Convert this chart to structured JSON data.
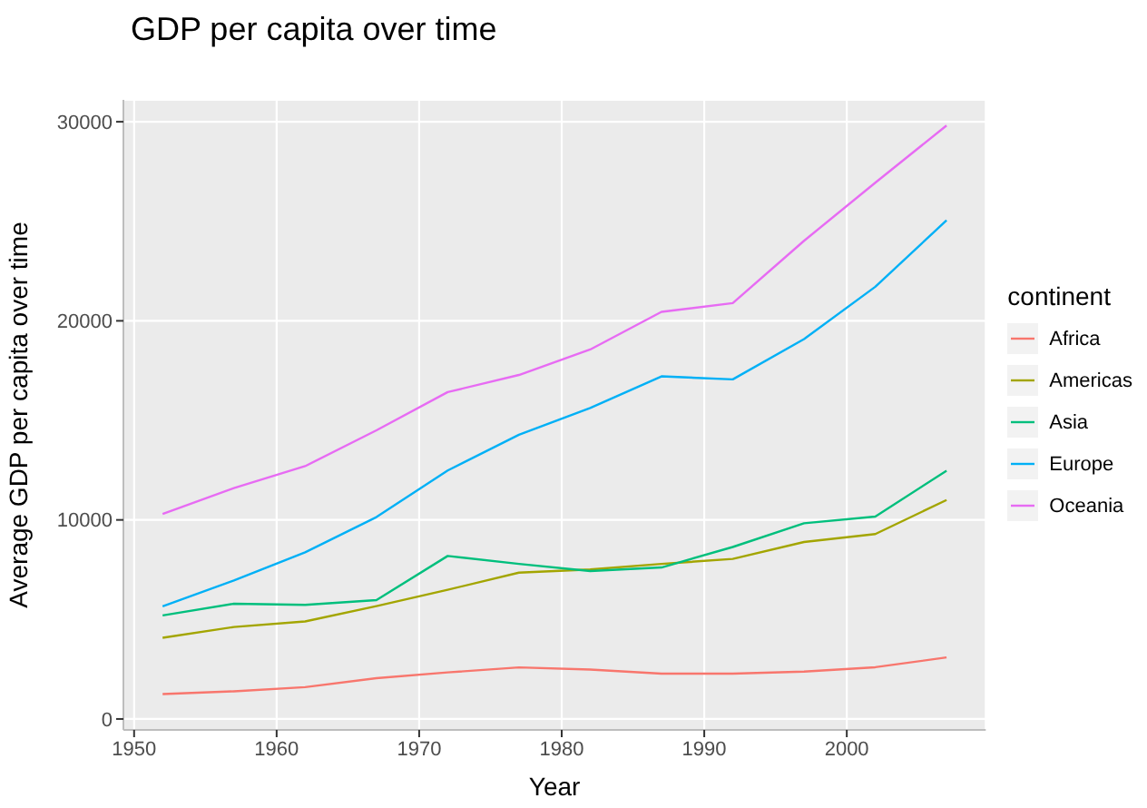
{
  "chart_data": {
    "type": "line",
    "title": "GDP per capita over time",
    "xlabel": "Year",
    "ylabel": "Average GDP per capita over time",
    "legend_title": "continent",
    "legend": "right",
    "grid": true,
    "marker": "none",
    "line_style": "solid",
    "x": [
      1952,
      1957,
      1962,
      1967,
      1972,
      1977,
      1982,
      1987,
      1992,
      1997,
      2002,
      2007
    ],
    "xlim": [
      1949.25,
      2009.75
    ],
    "xticks": [
      1950,
      1960,
      1970,
      1980,
      1990,
      2000
    ],
    "ylim": [
      -550,
      31100
    ],
    "yticks": [
      0,
      10000,
      20000,
      30000
    ],
    "series": [
      {
        "name": "Africa",
        "color": "#f8766d",
        "values": [
          1250,
          1390,
          1600,
          2050,
          2340,
          2590,
          2480,
          2280,
          2280,
          2380,
          2600,
          3090
        ]
      },
      {
        "name": "Americas",
        "color": "#a3a500",
        "values": [
          4080,
          4620,
          4900,
          5670,
          6490,
          7350,
          7510,
          7790,
          8040,
          8890,
          9290,
          11000
        ]
      },
      {
        "name": "Asia",
        "color": "#00bf7d",
        "values": [
          5200,
          5790,
          5730,
          5970,
          8190,
          7790,
          7430,
          7610,
          8640,
          9830,
          10170,
          12470
        ]
      },
      {
        "name": "Europe",
        "color": "#00b0f6",
        "values": [
          5660,
          6960,
          8370,
          10140,
          12480,
          14280,
          15620,
          17210,
          17060,
          19080,
          21710,
          25050
        ]
      },
      {
        "name": "Oceania",
        "color": "#e76bf3",
        "values": [
          10300,
          11600,
          12700,
          14500,
          16420,
          17280,
          18560,
          20450,
          20890,
          24020,
          26940,
          29810
        ]
      }
    ]
  }
}
